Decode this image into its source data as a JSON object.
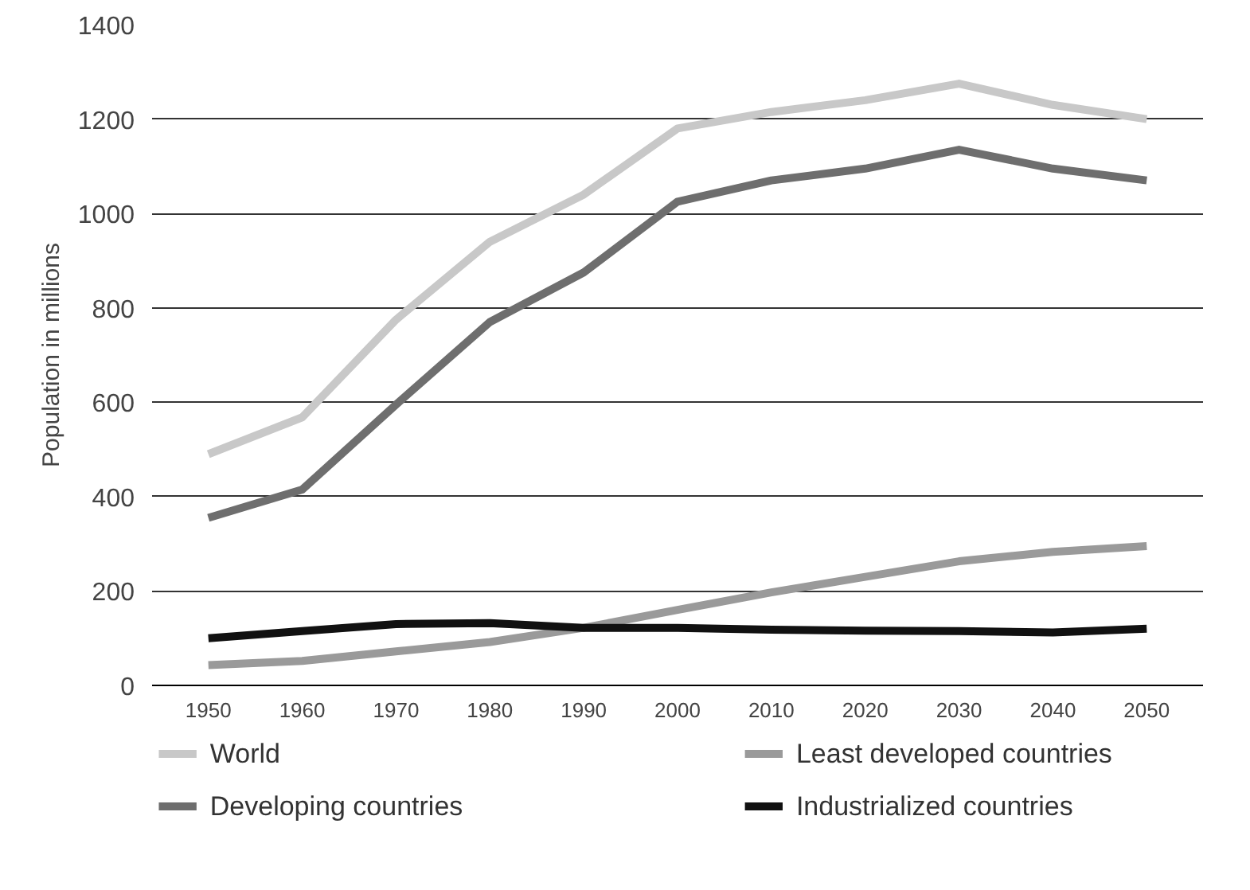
{
  "chart_data": {
    "type": "line",
    "ylabel": "Population in millions",
    "categories": [
      "1950",
      "1960",
      "1970",
      "1980",
      "1990",
      "2000",
      "2010",
      "2020",
      "2030",
      "2040",
      "2050"
    ],
    "ylim": [
      0,
      1400
    ],
    "yticks": [
      0,
      200,
      400,
      600,
      800,
      1000,
      1200,
      1400
    ],
    "grid": "y",
    "legend": "bottom",
    "marker": "none",
    "line_style": "solid",
    "series": [
      {
        "name": "World",
        "color": "#c8c8c8",
        "values": [
          490,
          568,
          775,
          940,
          1040,
          1180,
          1215,
          1240,
          1275,
          1230,
          1200
        ]
      },
      {
        "name": "Least developed countries",
        "color": "#9a9a9a",
        "values": [
          43,
          52,
          72,
          92,
          122,
          160,
          197,
          230,
          263,
          283,
          295
        ]
      },
      {
        "name": "Developing countries",
        "color": "#6e6e6e",
        "values": [
          355,
          415,
          595,
          770,
          875,
          1025,
          1070,
          1095,
          1135,
          1095,
          1070
        ]
      },
      {
        "name": "Industrialized countries",
        "color": "#111111",
        "values": [
          100,
          115,
          130,
          132,
          122,
          122,
          118,
          116,
          115,
          112,
          120
        ]
      }
    ]
  }
}
